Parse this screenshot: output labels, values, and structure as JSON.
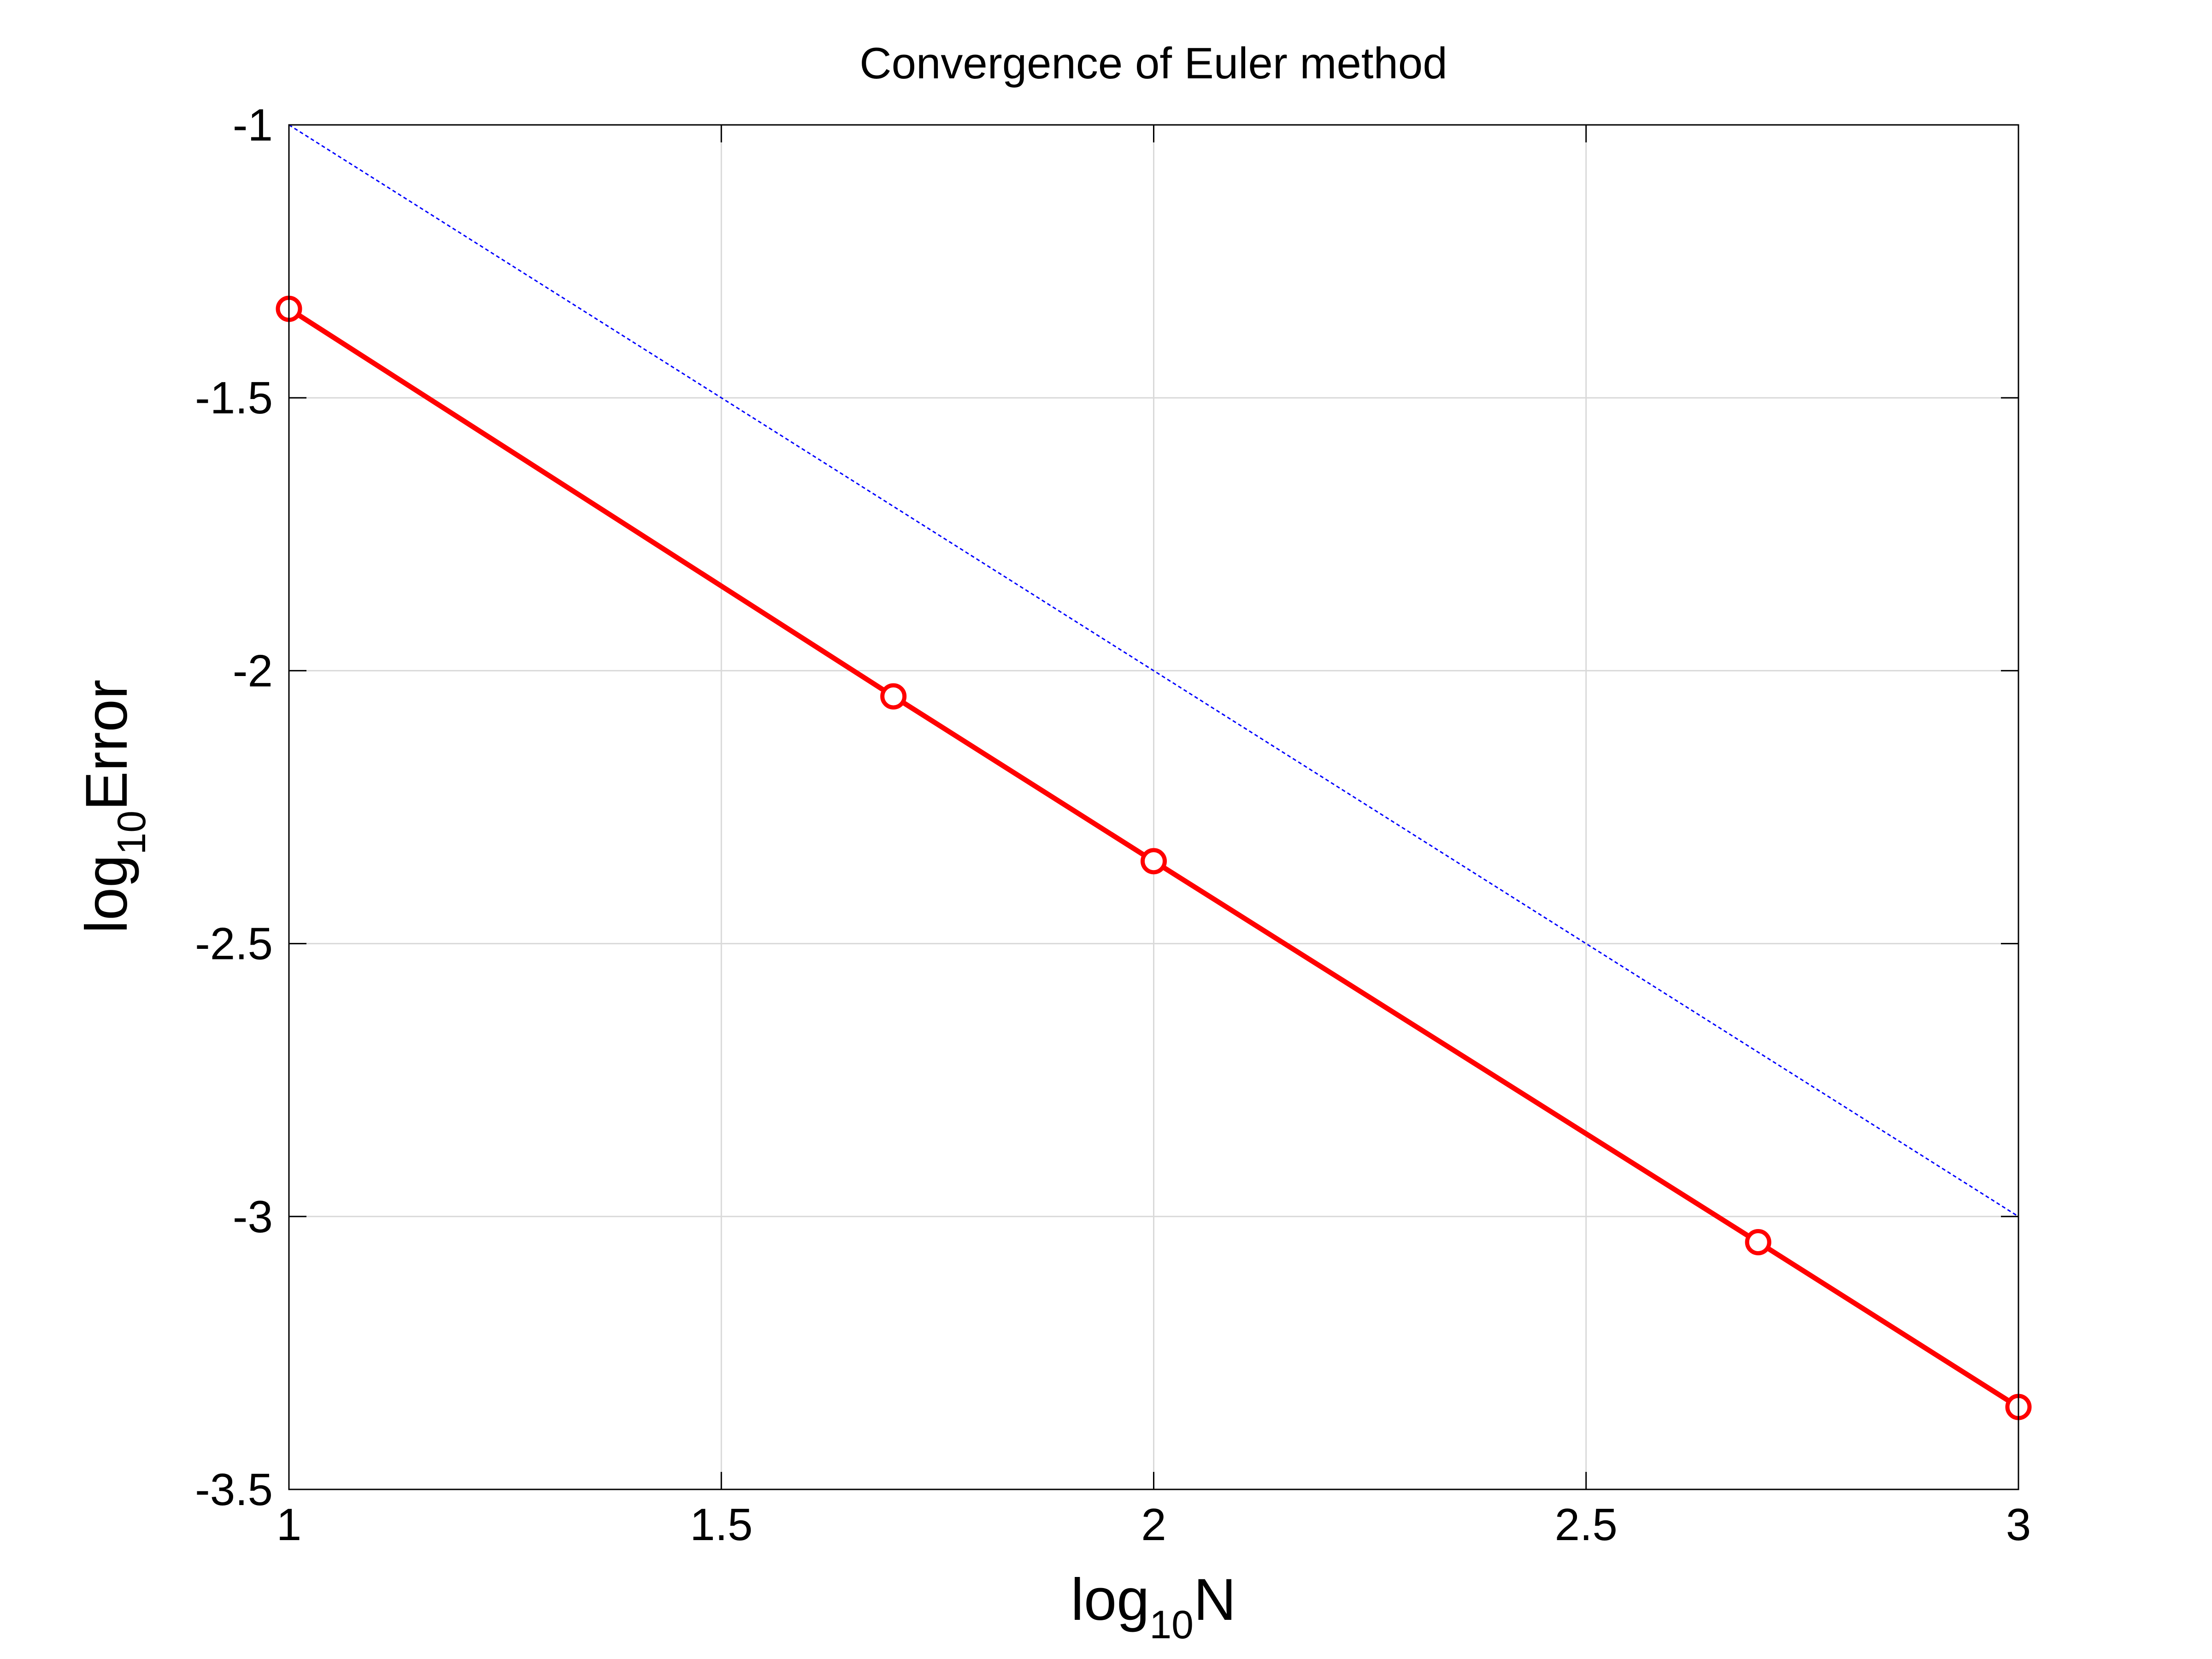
{
  "chart_data": {
    "type": "line",
    "title": "Convergence of Euler method",
    "xlabel": {
      "base": "log",
      "subscript": "10",
      "rest": "N"
    },
    "ylabel": {
      "base": "log",
      "subscript": "10",
      "rest": "Error"
    },
    "xlim": [
      1,
      3
    ],
    "ylim": [
      -3.5,
      -1
    ],
    "xticks": [
      1,
      1.5,
      2,
      2.5,
      3
    ],
    "xtick_labels": [
      "1",
      "1.5",
      "2",
      "2.5",
      "3"
    ],
    "yticks": [
      -3.5,
      -3,
      -2.5,
      -2,
      -1.5,
      -1
    ],
    "ytick_labels": [
      "-3.5",
      "-3",
      "-2.5",
      "-2",
      "-1.5",
      "-1"
    ],
    "grid": true,
    "series": [
      {
        "style": "solid",
        "marker": "circle",
        "color": "#ff0000",
        "x": [
          1,
          1.699,
          2,
          2.699,
          3
        ],
        "y": [
          -1.337,
          -2.047,
          -2.349,
          -3.047,
          -3.349
        ]
      },
      {
        "style": "dotted",
        "marker": "none",
        "color": "#0000ff",
        "x": [
          1,
          3
        ],
        "y": [
          -1,
          -3
        ]
      }
    ]
  }
}
